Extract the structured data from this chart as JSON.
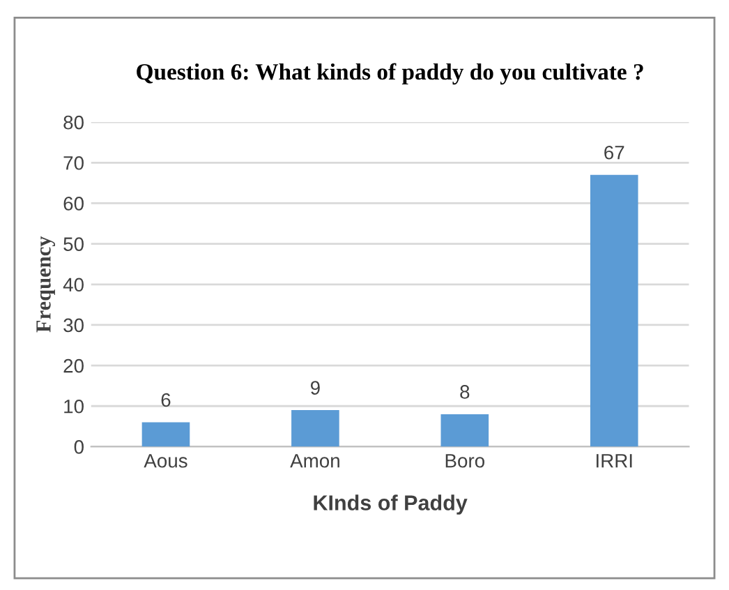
{
  "chart_data": {
    "type": "bar",
    "title": "Question 6: What kinds of paddy do you cultivate ?",
    "xlabel": "KInds of Paddy",
    "ylabel": "Frequency",
    "categories": [
      "Aous",
      "Amon",
      "Boro",
      "IRRI"
    ],
    "values": [
      6,
      9,
      8,
      67
    ],
    "color": "#5b9bd5",
    "ylim": [
      0,
      80
    ],
    "yticks": [
      0,
      10,
      20,
      30,
      40,
      50,
      60,
      70,
      80
    ],
    "grid": "y",
    "data_labels": true,
    "legend": false
  }
}
